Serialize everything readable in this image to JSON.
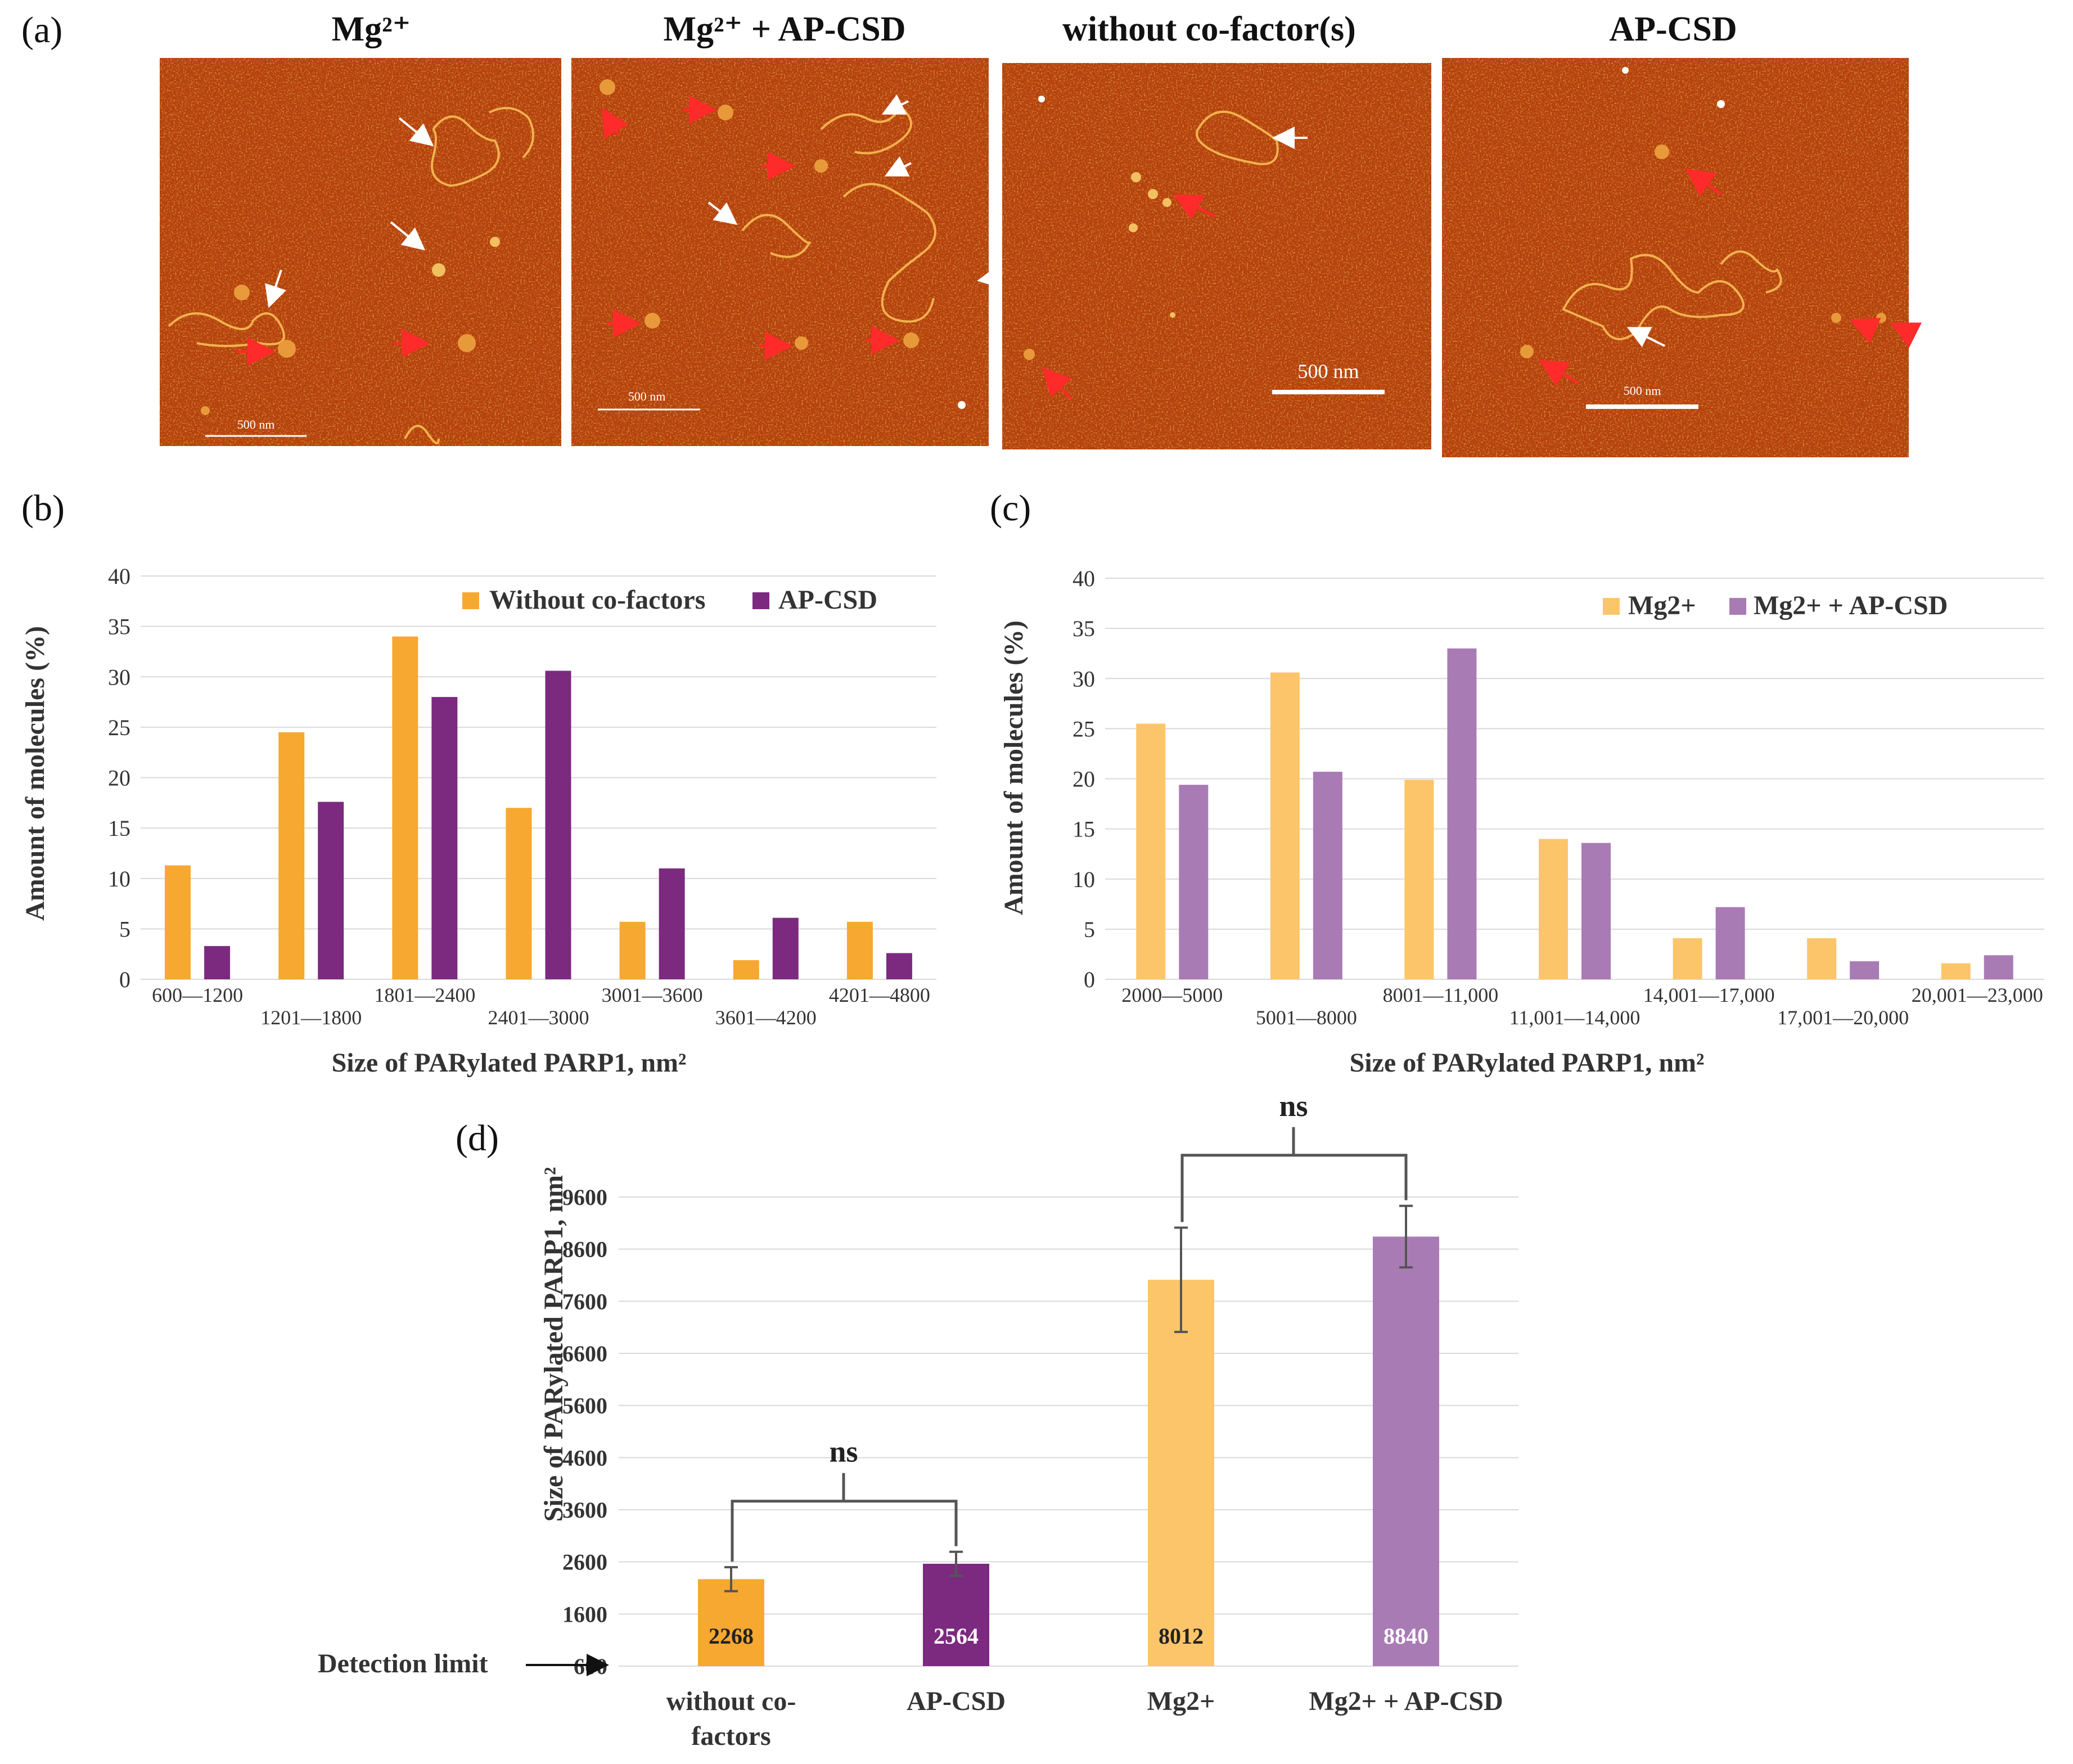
{
  "panels": {
    "a": "(a)",
    "b": "(b)",
    "c": "(c)",
    "d": "(d)"
  },
  "afm": {
    "titles": [
      "Mg²⁺",
      "Mg²⁺ + AP-CSD",
      "without co-factor(s)",
      "AP-CSD"
    ],
    "scale_bars": [
      "500 nm",
      "500 nm",
      "500  nm",
      "500 nm"
    ]
  },
  "colors": {
    "orange": "#F7A830",
    "purple": "#7B2A7F",
    "light_orange": "#FDC569",
    "light_purple": "#A97BB5",
    "afm_bg": "#B5420F",
    "gridline": "#D9D9D9"
  },
  "chart_data": [
    {
      "id": "b",
      "type": "bar",
      "title": "",
      "xlabel": "Size of PARylated PARP1, nm²",
      "ylabel": "Amount of molecules (%)",
      "ylim": [
        0,
        40
      ],
      "yticks": [
        0,
        5,
        10,
        15,
        20,
        25,
        30,
        35,
        40
      ],
      "legend_position": "top-right",
      "categories": [
        "600—1200",
        "1201—1800",
        "1801—2400",
        "2401—3000",
        "3001—3600",
        "3601—4200",
        "4201—4800"
      ],
      "series": [
        {
          "name": "Without co-factors",
          "color": "#F7A830",
          "values": [
            11.3,
            24.5,
            34,
            17,
            5.7,
            1.9,
            5.7
          ]
        },
        {
          "name": "AP-CSD",
          "color": "#7B2A7F",
          "values": [
            3.3,
            17.6,
            28,
            30.6,
            11,
            6.1,
            2.6
          ]
        }
      ]
    },
    {
      "id": "c",
      "type": "bar",
      "title": "",
      "xlabel": "Size of PARylated PARP1, nm²",
      "ylabel": "Amount of molecules (%)",
      "ylim": [
        0,
        40
      ],
      "yticks": [
        0,
        5,
        10,
        15,
        20,
        25,
        30,
        35,
        40
      ],
      "legend_position": "top-right",
      "categories": [
        "2000—5000",
        "5001—8000",
        "8001—11,000",
        "11,001—14,000",
        "14,001—17,000",
        "17,001—20,000",
        "20,001—23,000"
      ],
      "series": [
        {
          "name": "Mg2+",
          "color": "#FDC569",
          "values": [
            25.5,
            30.6,
            19.9,
            14,
            4.1,
            4.1,
            1.6
          ]
        },
        {
          "name": "Mg2+ + AP-CSD",
          "color": "#A97BB5",
          "values": [
            19.4,
            20.7,
            33,
            13.6,
            7.2,
            1.8,
            2.4
          ]
        }
      ]
    },
    {
      "id": "d",
      "type": "bar",
      "title": "",
      "xlabel": "",
      "ylabel": "Size of PARylated PARP1, nm²",
      "ylim": [
        600,
        9600
      ],
      "yticks": [
        600,
        1600,
        2600,
        3600,
        4600,
        5600,
        6600,
        7600,
        8600,
        9600
      ],
      "categories": [
        "without co-factors",
        "AP-CSD",
        "Mg2+",
        "Mg2+ + AP-CSD"
      ],
      "values": [
        2268,
        2564,
        8012,
        8840
      ],
      "value_labels": [
        "2268",
        "2564",
        "8012",
        "8840"
      ],
      "errors": [
        230,
        230,
        1000,
        590
      ],
      "colors": [
        "#F7A830",
        "#7B2A7F",
        "#FDC569",
        "#A97BB5"
      ],
      "label_colors": [
        "#222222",
        "#ffffff",
        "#222222",
        "#ffffff"
      ],
      "detection_limit_label": "Detection limit",
      "significance": [
        {
          "pair": [
            0,
            1
          ],
          "label": "ns"
        },
        {
          "pair": [
            2,
            3
          ],
          "label": "ns"
        }
      ]
    }
  ]
}
